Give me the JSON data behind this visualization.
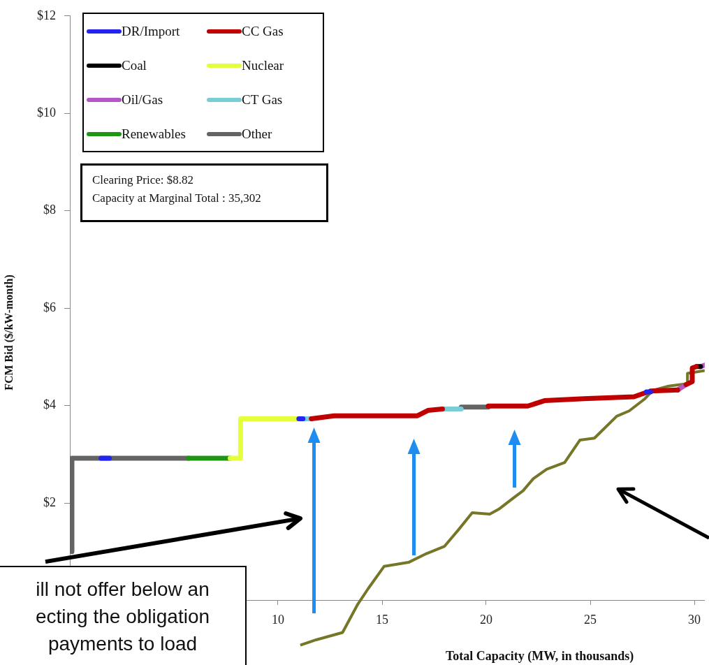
{
  "chart_data": {
    "type": "line",
    "xlabel": "Total Capacity (MW, in thousands)",
    "ylabel": "FCM Bid ($/kW-month)",
    "xlim": [
      0,
      30.5
    ],
    "xticks": [
      10,
      15,
      20,
      25,
      30
    ],
    "ylim": [
      -1,
      12
    ],
    "yticks": [
      {
        "value": 2,
        "label": "$2"
      },
      {
        "value": 4,
        "label": "$4"
      },
      {
        "value": 6,
        "label": "$6"
      },
      {
        "value": 8,
        "label": "$8"
      },
      {
        "value": 10,
        "label": "$10"
      },
      {
        "value": 12,
        "label": "$12"
      }
    ],
    "grid": false,
    "legend": "top left",
    "marker": "none",
    "line_style": "solid",
    "annotations": [
      "Clearing Price: $8.82\nCapacity at Marginal Total : 35,302",
      "ill not offer below an\necting the obligation\npayments to load"
    ],
    "series": [
      {
        "name": "DR/Import",
        "color": "#2424f0",
        "x": [
          1.5,
          1.9,
          null,
          11.0,
          11.2,
          null,
          27.7,
          27.9
        ],
        "values": [
          2.92,
          2.92,
          null,
          3.73,
          3.73,
          null,
          4.28,
          4.28
        ]
      },
      {
        "name": "CC Gas",
        "color": "#c00000",
        "x": [
          11.6,
          12.7,
          16.7,
          17.2,
          17.9,
          null,
          20.1,
          22.0,
          22.8,
          24.7,
          27.1,
          27.7,
          null,
          27.9,
          29.2,
          null,
          29.6,
          29.9,
          29.9,
          30.1
        ],
        "values": [
          3.73,
          3.79,
          3.79,
          3.9,
          3.93,
          null,
          3.99,
          3.99,
          4.1,
          4.14,
          4.18,
          4.27,
          null,
          4.3,
          4.32,
          null,
          4.43,
          4.49,
          4.77,
          4.8
        ]
      },
      {
        "name": "Coal",
        "color": "#000000",
        "x": [
          30.1,
          30.3
        ],
        "values": [
          4.8,
          4.8
        ]
      },
      {
        "name": "Nuclear",
        "color": "#e6ff3c",
        "x": [
          7.7,
          8.2,
          8.2,
          11.0
        ],
        "values": [
          2.92,
          2.92,
          3.73,
          3.73
        ]
      },
      {
        "name": "Oil/Gas",
        "color": "#b455c8",
        "x": [
          29.2,
          29.6,
          null,
          30.3,
          30.5
        ],
        "values": [
          4.32,
          4.43,
          null,
          4.8,
          4.83
        ]
      },
      {
        "name": "CT Gas",
        "color": "#78cdd7",
        "x": [
          11.2,
          11.6,
          null,
          17.9,
          18.8
        ],
        "values": [
          3.73,
          3.73,
          null,
          3.93,
          3.93
        ]
      },
      {
        "name": "Renewables",
        "color": "#1e9614",
        "x": [
          5.7,
          7.7
        ],
        "values": [
          2.92,
          2.92
        ]
      },
      {
        "name": "Other",
        "color": "#646464",
        "x": [
          0.1,
          0.1,
          5.7,
          null,
          18.8,
          20.1
        ],
        "values": [
          1,
          2.92,
          2.92,
          null,
          3.97,
          3.97
        ]
      },
      {
        "color": "#767628",
        "x": [
          11.07,
          11.83,
          13.1,
          13.83,
          14.33,
          15.1,
          16.27,
          17.13,
          18.0,
          18.67,
          19.33,
          20.17,
          20.6,
          21.33,
          21.77,
          22.27,
          22.9,
          23.77,
          24.5,
          25.2,
          26.27,
          26.87,
          27.6,
          28.0,
          28.77,
          29.67,
          29.67,
          30.5
        ],
        "values": [
          -0.92,
          -0.81,
          -0.66,
          -0.08,
          0.24,
          0.7,
          0.78,
          0.96,
          1.11,
          1.45,
          1.8,
          1.77,
          1.87,
          2.11,
          2.25,
          2.5,
          2.69,
          2.83,
          3.29,
          3.33,
          3.78,
          3.89,
          4.13,
          4.31,
          4.4,
          4.45,
          4.66,
          4.72
        ]
      }
    ]
  }
}
